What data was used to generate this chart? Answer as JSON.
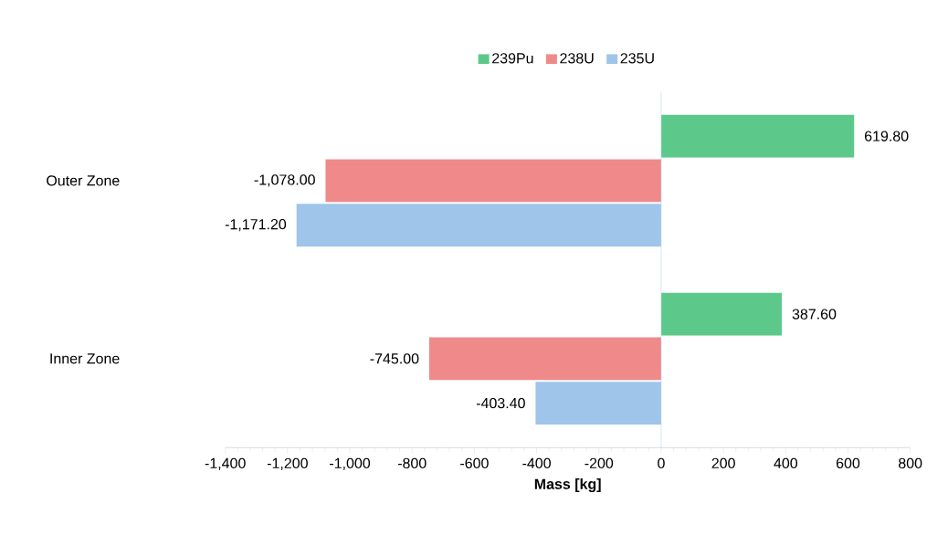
{
  "chart_data": {
    "type": "bar",
    "orientation": "horizontal",
    "xlabel": "Mass [kg]",
    "categories": [
      "Outer Zone",
      "Inner Zone"
    ],
    "series": [
      {
        "name": "239Pu",
        "color": "#5cc98a",
        "values": [
          619.8,
          387.6
        ],
        "value_labels": [
          "619.80",
          "387.60"
        ]
      },
      {
        "name": "238U",
        "color": "#f08a8a",
        "values": [
          -1078.0,
          -745.0
        ],
        "value_labels": [
          "-1,078.00",
          "-745.00"
        ]
      },
      {
        "name": "235U",
        "color": "#9fc5ea",
        "values": [
          -1171.2,
          -403.4
        ],
        "value_labels": [
          "-1,171.20",
          "-403.40"
        ]
      }
    ],
    "xlim": [
      -1400,
      800
    ],
    "xticks": [
      {
        "value": -1400,
        "label": "-1,400"
      },
      {
        "value": -1200,
        "label": "-1,200"
      },
      {
        "value": -1000,
        "label": "-1,000"
      },
      -800,
      -600,
      -400,
      -200,
      0,
      200,
      400,
      600,
      800
    ],
    "ref_lines": [
      {
        "axis": "x",
        "value": 0,
        "color": "#b2d1ee"
      }
    ],
    "legend": "top",
    "grid": false
  }
}
